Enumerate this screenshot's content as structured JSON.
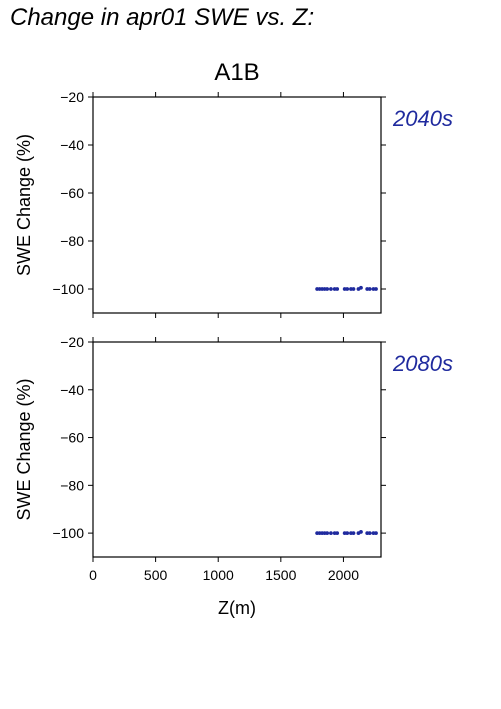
{
  "title": "Change in apr01 SWE vs. Z:",
  "colors": {
    "points": "#1f2a9e",
    "period_label": "#1f2a9e",
    "frame": "#000000"
  },
  "chart_data": [
    {
      "type": "scatter",
      "title": "A1B",
      "period": "2040s",
      "xlabel": "Z(m)",
      "ylabel": "SWE Change (%)",
      "xlim": [
        0,
        2300
      ],
      "ylim": [
        -110,
        -20
      ],
      "xticks": [
        0,
        500,
        1000,
        1500,
        2000
      ],
      "yticks": [
        -20,
        -40,
        -60,
        -80,
        -100
      ],
      "xtick_labels_shown": false,
      "series": [
        {
          "x": [
            1790,
            1810,
            1830,
            1850,
            1870,
            1900,
            1930,
            1950,
            2010,
            2030,
            2060,
            2080,
            2120,
            2140,
            2190,
            2210,
            2240,
            2260
          ],
          "y": [
            -100,
            -100,
            -100,
            -100,
            -100,
            -100,
            -100,
            -100,
            -100,
            -100,
            -100,
            -100,
            -100,
            -99.5,
            -100,
            -100,
            -100,
            -100
          ]
        }
      ]
    },
    {
      "type": "scatter",
      "title": "",
      "period": "2080s",
      "xlabel": "Z(m)",
      "ylabel": "SWE Change (%)",
      "xlim": [
        0,
        2300
      ],
      "ylim": [
        -110,
        -20
      ],
      "xticks": [
        0,
        500,
        1000,
        1500,
        2000
      ],
      "yticks": [
        -20,
        -40,
        -60,
        -80,
        -100
      ],
      "xtick_labels_shown": true,
      "series": [
        {
          "x": [
            1790,
            1810,
            1830,
            1850,
            1870,
            1900,
            1930,
            1950,
            2010,
            2030,
            2060,
            2080,
            2120,
            2140,
            2190,
            2210,
            2240,
            2260
          ],
          "y": [
            -100,
            -100,
            -100,
            -100,
            -100,
            -100,
            -100,
            -100,
            -100,
            -100,
            -100,
            -100,
            -100,
            -99.5,
            -100,
            -100,
            -100,
            -100
          ]
        }
      ]
    }
  ]
}
